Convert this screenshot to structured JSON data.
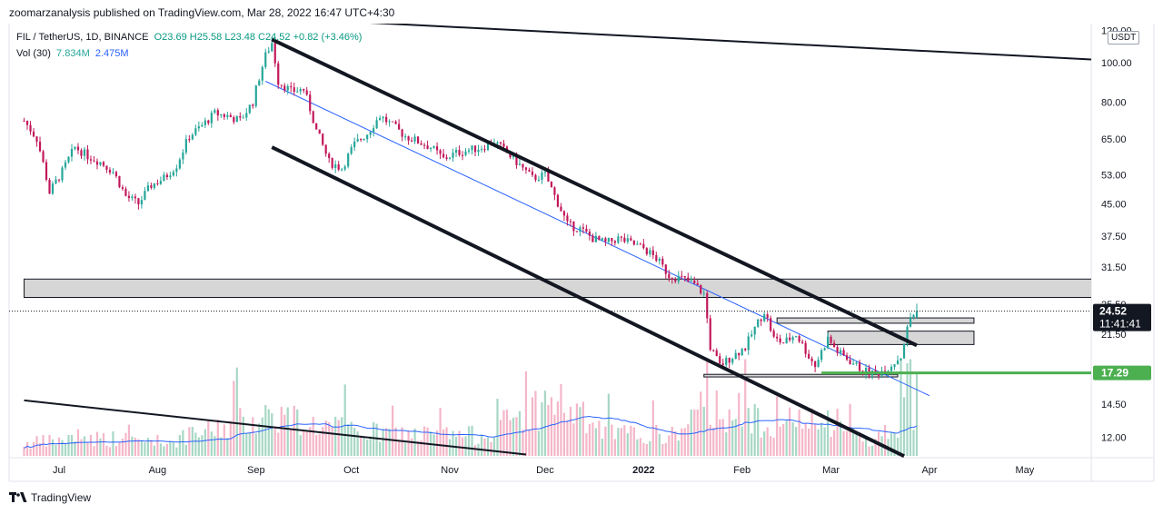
{
  "header": {
    "published": "zoomarzanalysis published on TradingView.com, Mar 28, 2022 16:47 UTC+4:30"
  },
  "legend": {
    "symbol": "FIL / TetherUS, 1D, BINANCE",
    "open": "O23.69",
    "high": "H25.58",
    "low": "L23.48",
    "close": "C24.52",
    "change": "+0.82 (+3.46%)",
    "vol_label": "Vol (30)",
    "vol_value": "7.834M",
    "vol_ma": "2.475M"
  },
  "currency_badge": "USDT",
  "footer": {
    "brand": "TradingView"
  },
  "colors": {
    "up": "#26a69a",
    "down": "#c2185b",
    "volume_up": "#a7d7c5",
    "volume_down": "#f4b6c8",
    "ma_line": "#2962ff",
    "support": "#4caf50",
    "zone_fill": "#d6d6d6"
  },
  "chart_data": {
    "type": "candlestick",
    "y_scale": "log",
    "price_axis_ticks": [
      "120.00",
      "100.00",
      "80.00",
      "65.00",
      "53.00",
      "45.00",
      "37.50",
      "31.50",
      "25.50",
      "21.50",
      "17.50",
      "14.50",
      "12.00"
    ],
    "time_axis_ticks": [
      "Jul",
      "Aug",
      "Sep",
      "Oct",
      "Nov",
      "Dec",
      "2022",
      "Feb",
      "Mar",
      "Apr",
      "May"
    ],
    "date_range": [
      "2021-06-20",
      "2022-03-28"
    ],
    "last_price_label": "24.52",
    "countdown_label": "11:41:41",
    "support_label": "17.29",
    "close_path": [
      [
        "2021-06-20",
        72
      ],
      [
        "2021-06-24",
        65
      ],
      [
        "2021-06-28",
        48
      ],
      [
        "2021-07-02",
        54
      ],
      [
        "2021-07-06",
        62
      ],
      [
        "2021-07-10",
        59
      ],
      [
        "2021-07-14",
        57
      ],
      [
        "2021-07-18",
        54
      ],
      [
        "2021-07-22",
        47
      ],
      [
        "2021-07-26",
        45
      ],
      [
        "2021-07-30",
        50
      ],
      [
        "2021-08-03",
        52
      ],
      [
        "2021-08-07",
        56
      ],
      [
        "2021-08-11",
        66
      ],
      [
        "2021-08-15",
        70
      ],
      [
        "2021-08-19",
        75
      ],
      [
        "2021-08-23",
        74
      ],
      [
        "2021-08-27",
        72
      ],
      [
        "2021-08-31",
        80
      ],
      [
        "2021-09-04",
        104
      ],
      [
        "2021-09-06",
        112
      ],
      [
        "2021-09-08",
        90
      ],
      [
        "2021-09-12",
        85
      ],
      [
        "2021-09-16",
        86
      ],
      [
        "2021-09-20",
        68
      ],
      [
        "2021-09-24",
        57
      ],
      [
        "2021-09-28",
        55
      ],
      [
        "2021-10-02",
        63
      ],
      [
        "2021-10-06",
        67
      ],
      [
        "2021-10-10",
        74
      ],
      [
        "2021-10-14",
        70
      ],
      [
        "2021-10-18",
        66
      ],
      [
        "2021-10-22",
        64
      ],
      [
        "2021-10-26",
        62
      ],
      [
        "2021-10-30",
        58
      ],
      [
        "2021-11-03",
        60
      ],
      [
        "2021-11-07",
        61
      ],
      [
        "2021-11-11",
        62
      ],
      [
        "2021-11-15",
        64
      ],
      [
        "2021-11-19",
        60
      ],
      [
        "2021-11-23",
        56
      ],
      [
        "2021-11-27",
        52
      ],
      [
        "2021-12-01",
        53
      ],
      [
        "2021-12-04",
        47
      ],
      [
        "2021-12-08",
        40
      ],
      [
        "2021-12-12",
        39
      ],
      [
        "2021-12-16",
        37
      ],
      [
        "2021-12-20",
        36
      ],
      [
        "2021-12-24",
        37
      ],
      [
        "2021-12-28",
        36
      ],
      [
        "2022-01-01",
        35
      ],
      [
        "2022-01-05",
        33
      ],
      [
        "2022-01-09",
        30
      ],
      [
        "2022-01-13",
        29.5
      ],
      [
        "2022-01-17",
        28.5
      ],
      [
        "2022-01-20",
        27
      ],
      [
        "2022-01-22",
        20
      ],
      [
        "2022-01-25",
        18
      ],
      [
        "2022-01-29",
        19
      ],
      [
        "2022-02-02",
        20
      ],
      [
        "2022-02-06",
        23
      ],
      [
        "2022-02-08",
        24.5
      ],
      [
        "2022-02-11",
        21
      ],
      [
        "2022-02-14",
        20.5
      ],
      [
        "2022-02-18",
        21.5
      ],
      [
        "2022-02-22",
        19
      ],
      [
        "2022-02-24",
        18
      ],
      [
        "2022-02-28",
        21
      ],
      [
        "2022-03-03",
        19.5
      ],
      [
        "2022-03-07",
        18.5
      ],
      [
        "2022-03-11",
        17.5
      ],
      [
        "2022-03-15",
        17.2
      ],
      [
        "2022-03-19",
        17.8
      ],
      [
        "2022-03-23",
        19
      ],
      [
        "2022-03-26",
        23.7
      ],
      [
        "2022-03-28",
        24.52
      ]
    ],
    "volume_level": [
      [
        "2021-06-20",
        0.12
      ],
      [
        "2021-07-10",
        0.18
      ],
      [
        "2021-08-05",
        0.14
      ],
      [
        "2021-09-06",
        0.42
      ],
      [
        "2021-09-20",
        0.3
      ],
      [
        "2021-10-10",
        0.22
      ],
      [
        "2021-11-10",
        0.2
      ],
      [
        "2021-12-04",
        0.55
      ],
      [
        "2021-12-20",
        0.22
      ],
      [
        "2022-01-10",
        0.2
      ],
      [
        "2022-01-22",
        0.5
      ],
      [
        "2022-02-08",
        0.35
      ],
      [
        "2022-03-01",
        0.3
      ],
      [
        "2022-03-15",
        0.15
      ],
      [
        "2022-03-26",
        0.45
      ]
    ],
    "drawings": [
      {
        "kind": "channel-upper",
        "from": [
          "2021-09-06",
          114
        ],
        "to": [
          "2022-03-28",
          20.2
        ]
      },
      {
        "kind": "channel-lower",
        "from": [
          "2021-09-06",
          62
        ],
        "to": [
          "2022-03-24",
          10.8
        ]
      },
      {
        "kind": "regression-line",
        "from": [
          "2021-09-04",
          90
        ],
        "to": [
          "2022-04-01",
          15.2
        ]
      },
      {
        "kind": "zone",
        "from": [
          "2021-06-20",
          29.4
        ],
        "to": [
          "2022-05-31",
          26.5
        ]
      },
      {
        "kind": "zone",
        "from": [
          "2022-02-12",
          23.6
        ],
        "to": [
          "2022-04-15",
          22.9
        ]
      },
      {
        "kind": "zone",
        "from": [
          "2022-02-28",
          21.9
        ],
        "to": [
          "2022-04-15",
          20.3
        ]
      },
      {
        "kind": "zone",
        "from": [
          "2022-01-20",
          17.15
        ],
        "to": [
          "2022-03-22",
          16.9
        ]
      },
      {
        "kind": "support",
        "from": [
          "2022-02-26",
          17.29
        ],
        "to": [
          "2022-05-31",
          17.29
        ]
      },
      {
        "kind": "trendline",
        "from": [
          "2021-09-14",
          128
        ],
        "to": [
          "2022-05-31",
          101
        ]
      },
      {
        "kind": "trendline",
        "from": [
          "2021-06-20",
          14.8
        ],
        "to": [
          "2021-11-25",
          10.9
        ]
      }
    ]
  }
}
